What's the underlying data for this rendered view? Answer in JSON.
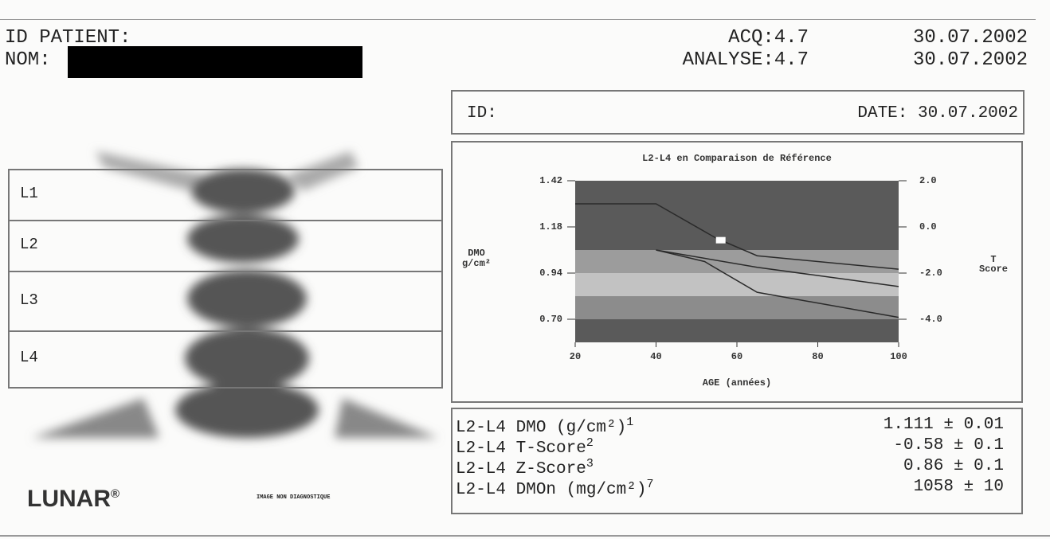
{
  "header": {
    "patient_id_label": "ID PATIENT:",
    "name_label": "NOM:",
    "acq": "ACQ:4.7",
    "acq_date": "30.07.2002",
    "analyse": "ANALYSE:4.7",
    "analyse_date": "30.07.2002"
  },
  "image": {
    "regions": [
      "L1",
      "L2",
      "L3",
      "L4"
    ],
    "logo": "LUNAR",
    "logo_mark": "®",
    "caption": "IMAGE NON DIAGNOSTIQUE"
  },
  "id_box": {
    "id_label": "ID:",
    "date": "DATE: 30.07.2002"
  },
  "chart_data": {
    "type": "line",
    "title": "L2-L4 en Comparaison de Référence",
    "ylabel": [
      "DMO",
      "g/cm²"
    ],
    "y2label": [
      "T",
      "Score"
    ],
    "xlabel": "AGE (années)",
    "xlim": [
      20,
      100
    ],
    "xticks": [
      20,
      40,
      60,
      80,
      100
    ],
    "ylim": [
      0.58,
      1.42
    ],
    "yticks": [
      1.42,
      1.18,
      0.94,
      {
        "value": 0.7,
        "label": "0.70"
      }
    ],
    "y2lim": [
      -5,
      2
    ],
    "y2ticks": [
      {
        "value": 2,
        "label": "2.0"
      },
      {
        "value": 0,
        "label": "0.0"
      },
      {
        "value": -2,
        "label": "-2.0"
      },
      {
        "value": -4,
        "label": "-4.0"
      }
    ],
    "background": "#5a5a5a",
    "bands": [
      {
        "from": -1,
        "to": -2,
        "color": "#9c9c9c"
      },
      {
        "from": -2,
        "to": -3,
        "color": "#c2c2c2"
      },
      {
        "from": -3,
        "to": -4,
        "color": "#8c8c8c"
      }
    ],
    "series": [
      {
        "color": "#2a2a2a",
        "x": [
          20,
          40,
          55,
          65,
          100
        ],
        "values": [
          1.3,
          1.3,
          1.12,
          1.03,
          0.96
        ]
      },
      {
        "color": "#2a2a2a",
        "x": [
          40,
          65,
          100
        ],
        "values": [
          1.06,
          0.97,
          0.87
        ]
      },
      {
        "color": "#2a2a2a",
        "x": [
          40,
          52,
          65,
          100
        ],
        "values": [
          1.06,
          1.0,
          0.84,
          0.71
        ]
      }
    ],
    "marker": {
      "x": 56,
      "value": 1.111,
      "color": "#ffffff"
    }
  },
  "results": [
    {
      "label": "L2-L4 DMO (g/cm²)",
      "note": "1",
      "value": "1.111 ± 0.01"
    },
    {
      "label": "L2-L4 T-Score",
      "note": "2",
      "value": "-0.58 ± 0.1"
    },
    {
      "label": "L2-L4 Z-Score",
      "note": "3",
      "value": "0.86 ± 0.1"
    },
    {
      "label": "L2-L4 DMOn (mg/cm²)",
      "note": "7",
      "value": "1058 ± 10"
    }
  ]
}
